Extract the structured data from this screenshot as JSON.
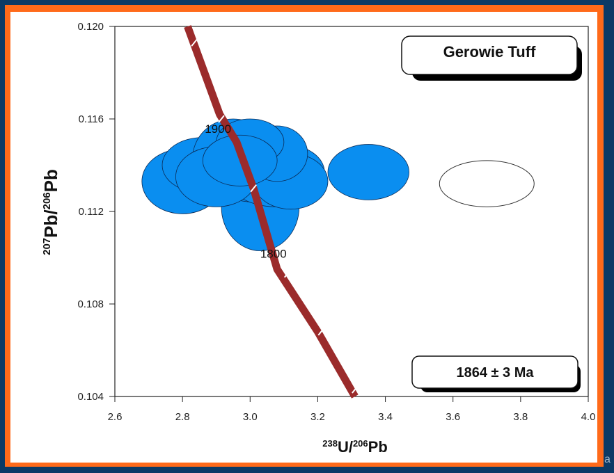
{
  "colors": {
    "background": "#0c3a66",
    "frame": "#ff6a1a",
    "ellipse_fill": "#0a8ef0",
    "ellipse_stroke": "#0b2a55",
    "concordia": "#9b2b2b",
    "text": "#111111"
  },
  "stray_text": "a",
  "chart_data": {
    "type": "scatter",
    "title": "Gerowie Tuff",
    "age_label": "1864 ± 3 Ma",
    "xlabel": {
      "pre_sup": "238",
      "pre": "U/",
      "mid_sup": "206",
      "post": "Pb"
    },
    "ylabel": {
      "pre_sup": "207",
      "pre": "Pb/",
      "mid_sup": "206",
      "post": "Pb"
    },
    "xlim": [
      2.6,
      4.0
    ],
    "ylim": [
      0.104,
      0.12
    ],
    "x_ticks": [
      "2.6",
      "2.8",
      "3.0",
      "3.2",
      "3.4",
      "3.6",
      "3.8",
      "4.0"
    ],
    "y_ticks": [
      "0.104",
      "0.108",
      "0.112",
      "0.116",
      "0.120"
    ],
    "grid": false,
    "concordia": {
      "points": [
        [
          2.815,
          0.12
        ],
        [
          2.91,
          0.1162
        ],
        [
          2.96,
          0.115
        ],
        [
          3.01,
          0.113
        ],
        [
          3.08,
          0.1095
        ],
        [
          3.2,
          0.1068
        ],
        [
          3.31,
          0.104
        ]
      ],
      "ticks": [
        [
          2.835,
          0.1193
        ],
        [
          2.915,
          0.116
        ],
        [
          3.01,
          0.113
        ],
        [
          3.11,
          0.1093
        ],
        [
          3.21,
          0.1068
        ],
        [
          3.31,
          0.1043
        ]
      ]
    },
    "concordia_labels": [
      {
        "text": "1900",
        "x": 2.905,
        "y": 0.1154
      },
      {
        "text": "1800",
        "x": 3.03,
        "y": 0.11
      }
    ],
    "ellipses": [
      {
        "cx": 3.03,
        "cy": 0.1122,
        "rx": 0.115,
        "ry": 0.0019,
        "filled": true
      },
      {
        "cx": 2.8,
        "cy": 0.1133,
        "rx": 0.12,
        "ry": 0.0014,
        "filled": true
      },
      {
        "cx": 2.86,
        "cy": 0.114,
        "rx": 0.12,
        "ry": 0.0012,
        "filled": true
      },
      {
        "cx": 2.95,
        "cy": 0.1143,
        "rx": 0.12,
        "ry": 0.0017,
        "filled": true
      },
      {
        "cx": 3.02,
        "cy": 0.1136,
        "rx": 0.15,
        "ry": 0.0012,
        "filled": true
      },
      {
        "cx": 3.08,
        "cy": 0.1133,
        "rx": 0.14,
        "ry": 0.0011,
        "filled": true
      },
      {
        "cx": 3.1,
        "cy": 0.1137,
        "rx": 0.12,
        "ry": 0.0012,
        "filled": true
      },
      {
        "cx": 3.12,
        "cy": 0.1133,
        "rx": 0.11,
        "ry": 0.0012,
        "filled": true
      },
      {
        "cx": 3.08,
        "cy": 0.1145,
        "rx": 0.09,
        "ry": 0.0012,
        "filled": true
      },
      {
        "cx": 3.0,
        "cy": 0.115,
        "rx": 0.1,
        "ry": 0.001,
        "filled": true
      },
      {
        "cx": 2.9,
        "cy": 0.1135,
        "rx": 0.12,
        "ry": 0.0013,
        "filled": true
      },
      {
        "cx": 2.97,
        "cy": 0.1142,
        "rx": 0.11,
        "ry": 0.0011,
        "filled": true
      },
      {
        "cx": 3.35,
        "cy": 0.1137,
        "rx": 0.12,
        "ry": 0.0012,
        "filled": true
      },
      {
        "cx": 3.7,
        "cy": 0.1132,
        "rx": 0.14,
        "ry": 0.001,
        "filled": false
      }
    ]
  }
}
